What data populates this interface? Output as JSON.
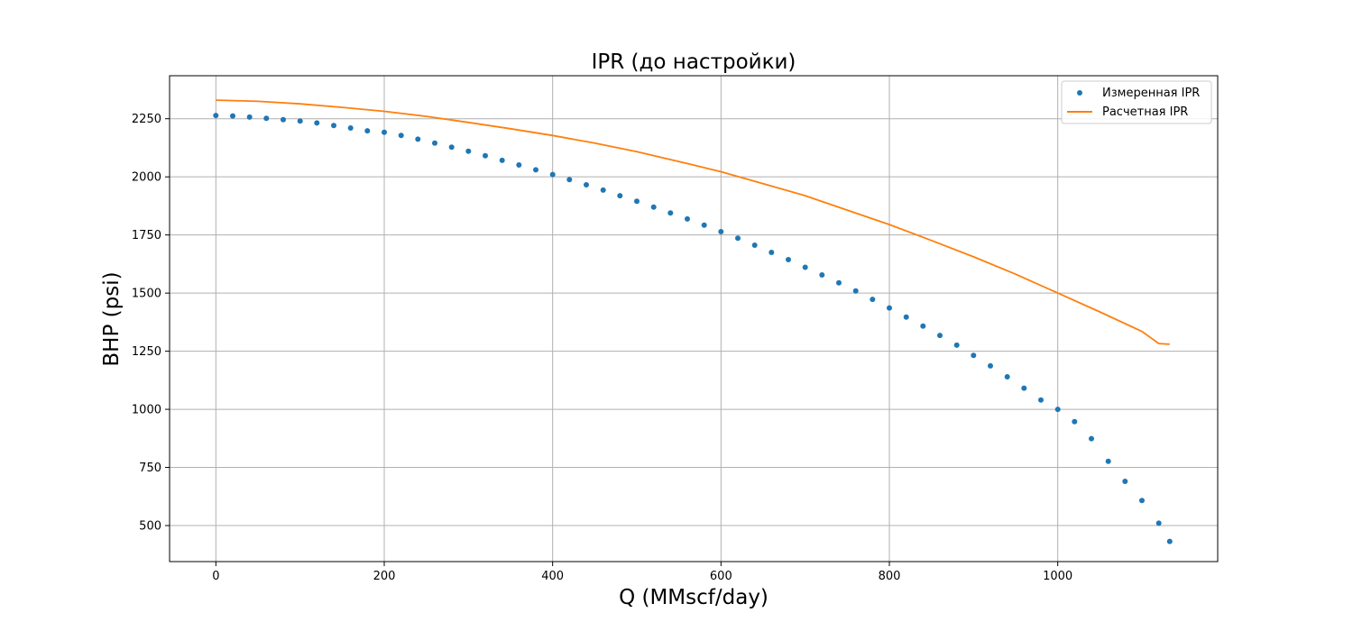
{
  "chart_data": {
    "type": "scatter",
    "title": "IPR (до настройки)",
    "xlabel": "Q (MMscf/day)",
    "ylabel": "BHP (psi)",
    "xlim": [
      -55,
      1190
    ],
    "ylim": [
      345,
      2435
    ],
    "xticks": [
      0,
      200,
      400,
      600,
      800,
      1000
    ],
    "yticks": [
      500,
      750,
      1000,
      1250,
      1500,
      1750,
      2000,
      2250
    ],
    "grid": true,
    "legend_position": "top-right",
    "series": [
      {
        "name": "Измеренная IPR",
        "kind": "scatter",
        "color": "#1f77b4",
        "x": [
          0,
          20,
          40,
          60,
          80,
          100,
          120,
          140,
          160,
          180,
          200,
          220,
          240,
          260,
          280,
          300,
          320,
          340,
          360,
          380,
          400,
          420,
          440,
          460,
          480,
          500,
          520,
          540,
          560,
          580,
          600,
          620,
          640,
          660,
          680,
          700,
          720,
          740,
          760,
          780,
          800,
          820,
          840,
          860,
          880,
          900,
          920,
          940,
          960,
          980,
          1000,
          1020,
          1040,
          1060,
          1080,
          1100,
          1120,
          1133
        ],
        "y": [
          2264,
          2262,
          2257,
          2252,
          2246,
          2240,
          2232,
          2221,
          2210,
          2198,
          2192,
          2178,
          2162,
          2145,
          2128,
          2110,
          2091,
          2071,
          2051,
          2030,
          2010,
          1988,
          1966,
          1943,
          1919,
          1895,
          1870,
          1845,
          1819,
          1792,
          1764,
          1736,
          1706,
          1675,
          1644,
          1611,
          1578,
          1544,
          1509,
          1473,
          1436,
          1397,
          1358,
          1318,
          1276,
          1232,
          1187,
          1140,
          1091,
          1040,
          1000,
          947,
          874,
          776,
          690,
          608,
          510,
          432
        ]
      },
      {
        "name": "Расчетная IPR",
        "kind": "line",
        "color": "#ff7f0e",
        "x": [
          0,
          50,
          100,
          150,
          200,
          250,
          300,
          350,
          400,
          450,
          500,
          550,
          600,
          650,
          700,
          750,
          800,
          850,
          900,
          950,
          1000,
          1050,
          1100,
          1120,
          1133
        ],
        "y": [
          2330,
          2325,
          2314,
          2299,
          2282,
          2260,
          2234,
          2207,
          2178,
          2145,
          2108,
          2066,
          2022,
          1971,
          1919,
          1857,
          1795,
          1726,
          1656,
          1581,
          1500,
          1419,
          1335,
          1283,
          1280
        ]
      }
    ]
  }
}
